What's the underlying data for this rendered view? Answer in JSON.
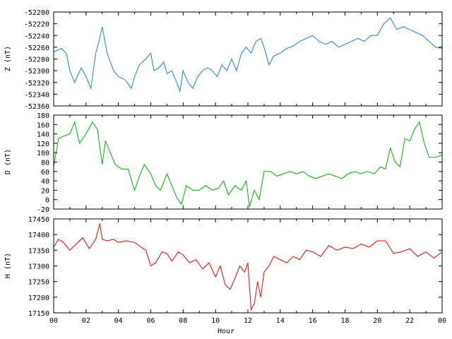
{
  "chart_data": [
    {
      "type": "line",
      "ylabel": "Z (nT)",
      "ylim": [
        -52360,
        -52200
      ],
      "yticks": [
        -52360,
        -52340,
        -52320,
        -52300,
        -52280,
        -52260,
        -52240,
        -52220,
        -52200
      ],
      "xlim": [
        0,
        24
      ],
      "color": "#1a7fe0",
      "series": [
        {
          "x": [
            0,
            0.5,
            0.8,
            1.0,
            1.3,
            1.7,
            2.0,
            2.3,
            2.6,
            2.8,
            3.0,
            3.3,
            3.7,
            4.0,
            4.4,
            4.8,
            5.0,
            5.3,
            5.7,
            6.0,
            6.2,
            6.5,
            6.8,
            7.0,
            7.3,
            7.6,
            7.8,
            8.0,
            8.3,
            8.6,
            8.9,
            9.2,
            9.5,
            9.8,
            10.1,
            10.4,
            10.7,
            11.0,
            11.3,
            11.6,
            11.9,
            12.2,
            12.5,
            12.8,
            13.0,
            13.3,
            13.6,
            14.0,
            14.4,
            14.8,
            15.2,
            15.6,
            16.0,
            16.4,
            16.8,
            17.2,
            17.6,
            18.0,
            18.4,
            18.8,
            19.2,
            19.6,
            20.0,
            20.4,
            20.8,
            21.2,
            21.6,
            22.0,
            22.4,
            22.8,
            23.2,
            23.6,
            24.0
          ],
          "y": [
            -52268,
            -52262,
            -52272,
            -52300,
            -52320,
            -52295,
            -52310,
            -52330,
            -52270,
            -52250,
            -52225,
            -52270,
            -52300,
            -52310,
            -52315,
            -52330,
            -52310,
            -52290,
            -52280,
            -52270,
            -52300,
            -52295,
            -52285,
            -52305,
            -52300,
            -52320,
            -52335,
            -52300,
            -52320,
            -52330,
            -52310,
            -52300,
            -52295,
            -52300,
            -52310,
            -52290,
            -52300,
            -52280,
            -52300,
            -52270,
            -52260,
            -52270,
            -52250,
            -52245,
            -52260,
            -52290,
            -52275,
            -52270,
            -52262,
            -52258,
            -52250,
            -52245,
            -52240,
            -52250,
            -52255,
            -52250,
            -52260,
            -52255,
            -52250,
            -52245,
            -52250,
            -52240,
            -52240,
            -52220,
            -52210,
            -52230,
            -52225,
            -52230,
            -52235,
            -52240,
            -52250,
            -52260,
            -52262
          ]
        }
      ]
    },
    {
      "type": "line",
      "ylabel": "D (nT)",
      "ylim": [
        -20,
        180
      ],
      "yticks": [
        -20,
        0,
        20,
        40,
        60,
        80,
        100,
        120,
        140,
        160,
        180
      ],
      "xlim": [
        0,
        24
      ],
      "color": "#00b000",
      "series": [
        {
          "x": [
            0,
            0.3,
            0.6,
            1.0,
            1.3,
            1.6,
            2.0,
            2.4,
            2.7,
            3.0,
            3.2,
            3.5,
            3.8,
            4.2,
            4.6,
            5.0,
            5.3,
            5.6,
            6.0,
            6.3,
            6.6,
            7.0,
            7.3,
            7.6,
            7.9,
            8.2,
            8.6,
            9.0,
            9.4,
            9.8,
            10.2,
            10.5,
            10.8,
            11.2,
            11.6,
            11.9,
            12.1,
            12.4,
            12.7,
            13.0,
            13.4,
            13.8,
            14.2,
            14.6,
            15.0,
            15.4,
            15.8,
            16.2,
            16.6,
            17.0,
            17.4,
            17.8,
            18.2,
            18.6,
            19.0,
            19.4,
            19.8,
            20.2,
            20.5,
            20.8,
            21.1,
            21.4,
            21.7,
            22.0,
            22.3,
            22.6,
            22.9,
            23.2,
            23.6,
            24.0
          ],
          "y": [
            70,
            130,
            135,
            140,
            165,
            120,
            140,
            165,
            150,
            75,
            125,
            100,
            75,
            65,
            65,
            20,
            50,
            75,
            55,
            30,
            20,
            55,
            30,
            5,
            -10,
            30,
            20,
            20,
            30,
            20,
            25,
            40,
            10,
            30,
            20,
            40,
            -15,
            20,
            0,
            60,
            60,
            50,
            55,
            60,
            55,
            60,
            50,
            45,
            50,
            55,
            50,
            45,
            55,
            60,
            55,
            60,
            55,
            70,
            65,
            110,
            80,
            70,
            130,
            125,
            150,
            165,
            120,
            90,
            90,
            95
          ]
        }
      ]
    },
    {
      "type": "line",
      "ylabel": "H (nT)",
      "xlabel": "Hour",
      "ylim": [
        17150,
        17450
      ],
      "yticks": [
        17150,
        17200,
        17250,
        17300,
        17350,
        17400,
        17450
      ],
      "xlim": [
        0,
        24
      ],
      "xticks": [
        "00",
        "02",
        "04",
        "06",
        "08",
        "10",
        "12",
        "14",
        "16",
        "18",
        "20",
        "22",
        "00"
      ],
      "color": "#f00000",
      "series": [
        {
          "x": [
            0,
            0.3,
            0.6,
            1.0,
            1.4,
            1.8,
            2.2,
            2.6,
            2.85,
            3.0,
            3.3,
            3.7,
            4.0,
            4.5,
            5.0,
            5.4,
            5.7,
            6.0,
            6.3,
            6.7,
            7.0,
            7.3,
            7.7,
            8.0,
            8.4,
            8.8,
            9.2,
            9.6,
            10.0,
            10.3,
            10.6,
            10.9,
            11.2,
            11.5,
            11.8,
            12.0,
            12.2,
            12.4,
            12.6,
            12.8,
            13.0,
            13.3,
            13.6,
            14.0,
            14.4,
            14.8,
            15.2,
            15.6,
            16.0,
            16.5,
            17.0,
            17.5,
            18.0,
            18.5,
            19.0,
            19.5,
            20.0,
            20.5,
            21.0,
            21.5,
            22.0,
            22.5,
            23.0,
            23.5,
            24.0
          ],
          "y": [
            17360,
            17385,
            17375,
            17350,
            17370,
            17390,
            17355,
            17385,
            17435,
            17385,
            17380,
            17385,
            17375,
            17380,
            17375,
            17360,
            17350,
            17300,
            17310,
            17345,
            17340,
            17315,
            17345,
            17335,
            17310,
            17320,
            17290,
            17310,
            17265,
            17300,
            17240,
            17225,
            17260,
            17300,
            17280,
            17310,
            17160,
            17180,
            17250,
            17200,
            17280,
            17300,
            17330,
            17320,
            17310,
            17330,
            17320,
            17350,
            17345,
            17330,
            17365,
            17350,
            17360,
            17355,
            17370,
            17360,
            17380,
            17380,
            17340,
            17345,
            17355,
            17330,
            17345,
            17325,
            17345
          ]
        }
      ]
    }
  ]
}
